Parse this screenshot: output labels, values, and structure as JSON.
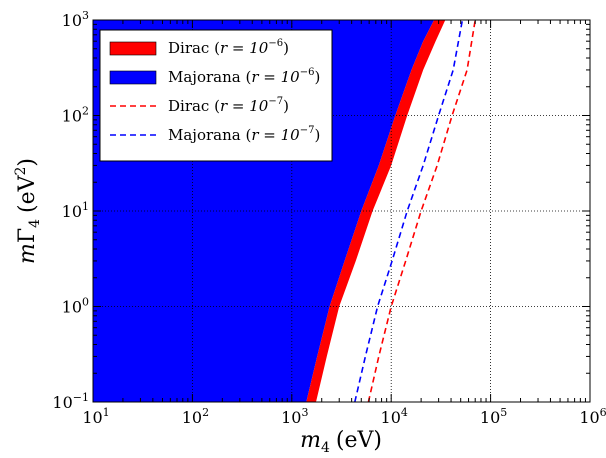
{
  "chart_data": {
    "type": "area",
    "title": "",
    "xlabel": {
      "base": "m",
      "sub": "4",
      "unit": "(eV)"
    },
    "ylabel": {
      "base": "m",
      "sym": "Γ",
      "sub": "4",
      "unit_open": "(eV",
      "unit_sup": "2",
      "unit_close": ")"
    },
    "xscale": "log",
    "yscale": "log",
    "xlim": [
      10,
      1000000
    ],
    "ylim": [
      0.1,
      1000
    ],
    "grid": true,
    "legend_position": "top-left",
    "x_ticks": [
      {
        "base": "10",
        "exp": "1",
        "value": 10
      },
      {
        "base": "10",
        "exp": "2",
        "value": 100
      },
      {
        "base": "10",
        "exp": "3",
        "value": 1000
      },
      {
        "base": "10",
        "exp": "4",
        "value": 10000
      },
      {
        "base": "10",
        "exp": "5",
        "value": 100000
      },
      {
        "base": "10",
        "exp": "6",
        "value": 1000000
      }
    ],
    "y_ticks": [
      {
        "base": "10",
        "exp": "−1",
        "value": 0.1
      },
      {
        "base": "10",
        "exp": "0",
        "value": 1
      },
      {
        "base": "10",
        "exp": "1",
        "value": 10
      },
      {
        "base": "10",
        "exp": "2",
        "value": 100
      },
      {
        "base": "10",
        "exp": "3",
        "value": 1000
      }
    ],
    "series": [
      {
        "name": "Majorana",
        "r_exp": "−6",
        "style": "filled",
        "color": "#0000ff",
        "boundary": {
          "x": [
            1400,
            1800,
            2400,
            3400,
            5000,
            7500,
            11000,
            16000,
            21000,
            27000
          ],
          "y": [
            0.1,
            0.3,
            1,
            3,
            10,
            30,
            100,
            300,
            600,
            1000
          ]
        }
      },
      {
        "name": "Dirac",
        "r_exp": "−6",
        "style": "filled",
        "color": "#ff0000",
        "boundary": {
          "x": [
            1750,
            2250,
            3000,
            4400,
            6500,
            10000,
            14500,
            21000,
            28000,
            35000
          ],
          "y": [
            0.1,
            0.3,
            1,
            3,
            10,
            30,
            100,
            300,
            600,
            1000
          ]
        }
      },
      {
        "name": "Dirac",
        "r_exp": "−7",
        "style": "dashed",
        "color": "#ff0000",
        "x": [
          5900,
          7500,
          10000,
          14000,
          20000,
          29000,
          41000,
          58000,
          70000
        ],
        "y": [
          0.1,
          0.3,
          1,
          3,
          10,
          30,
          100,
          300,
          1000
        ]
      },
      {
        "name": "Majorana",
        "r_exp": "−7",
        "style": "dashed",
        "color": "#0000ff",
        "x": [
          4300,
          5500,
          7300,
          10200,
          14500,
          21000,
          30000,
          42000,
          52000
        ],
        "y": [
          0.1,
          0.3,
          1,
          3,
          10,
          30,
          100,
          300,
          1000
        ]
      }
    ],
    "legend": [
      {
        "name": "Dirac",
        "r_label": "r = 10",
        "r_exp": "−6",
        "symbol": "patch",
        "color": "#ff0000"
      },
      {
        "name": "Majorana",
        "r_label": "r = 10",
        "r_exp": "−6",
        "symbol": "patch",
        "color": "#0000ff"
      },
      {
        "name": "Dirac",
        "r_label": "r = 10",
        "r_exp": "−7",
        "symbol": "dashed",
        "color": "#ff0000"
      },
      {
        "name": "Majorana",
        "r_label": "r = 10",
        "r_exp": "−7",
        "symbol": "dashed",
        "color": "#0000ff"
      }
    ]
  }
}
